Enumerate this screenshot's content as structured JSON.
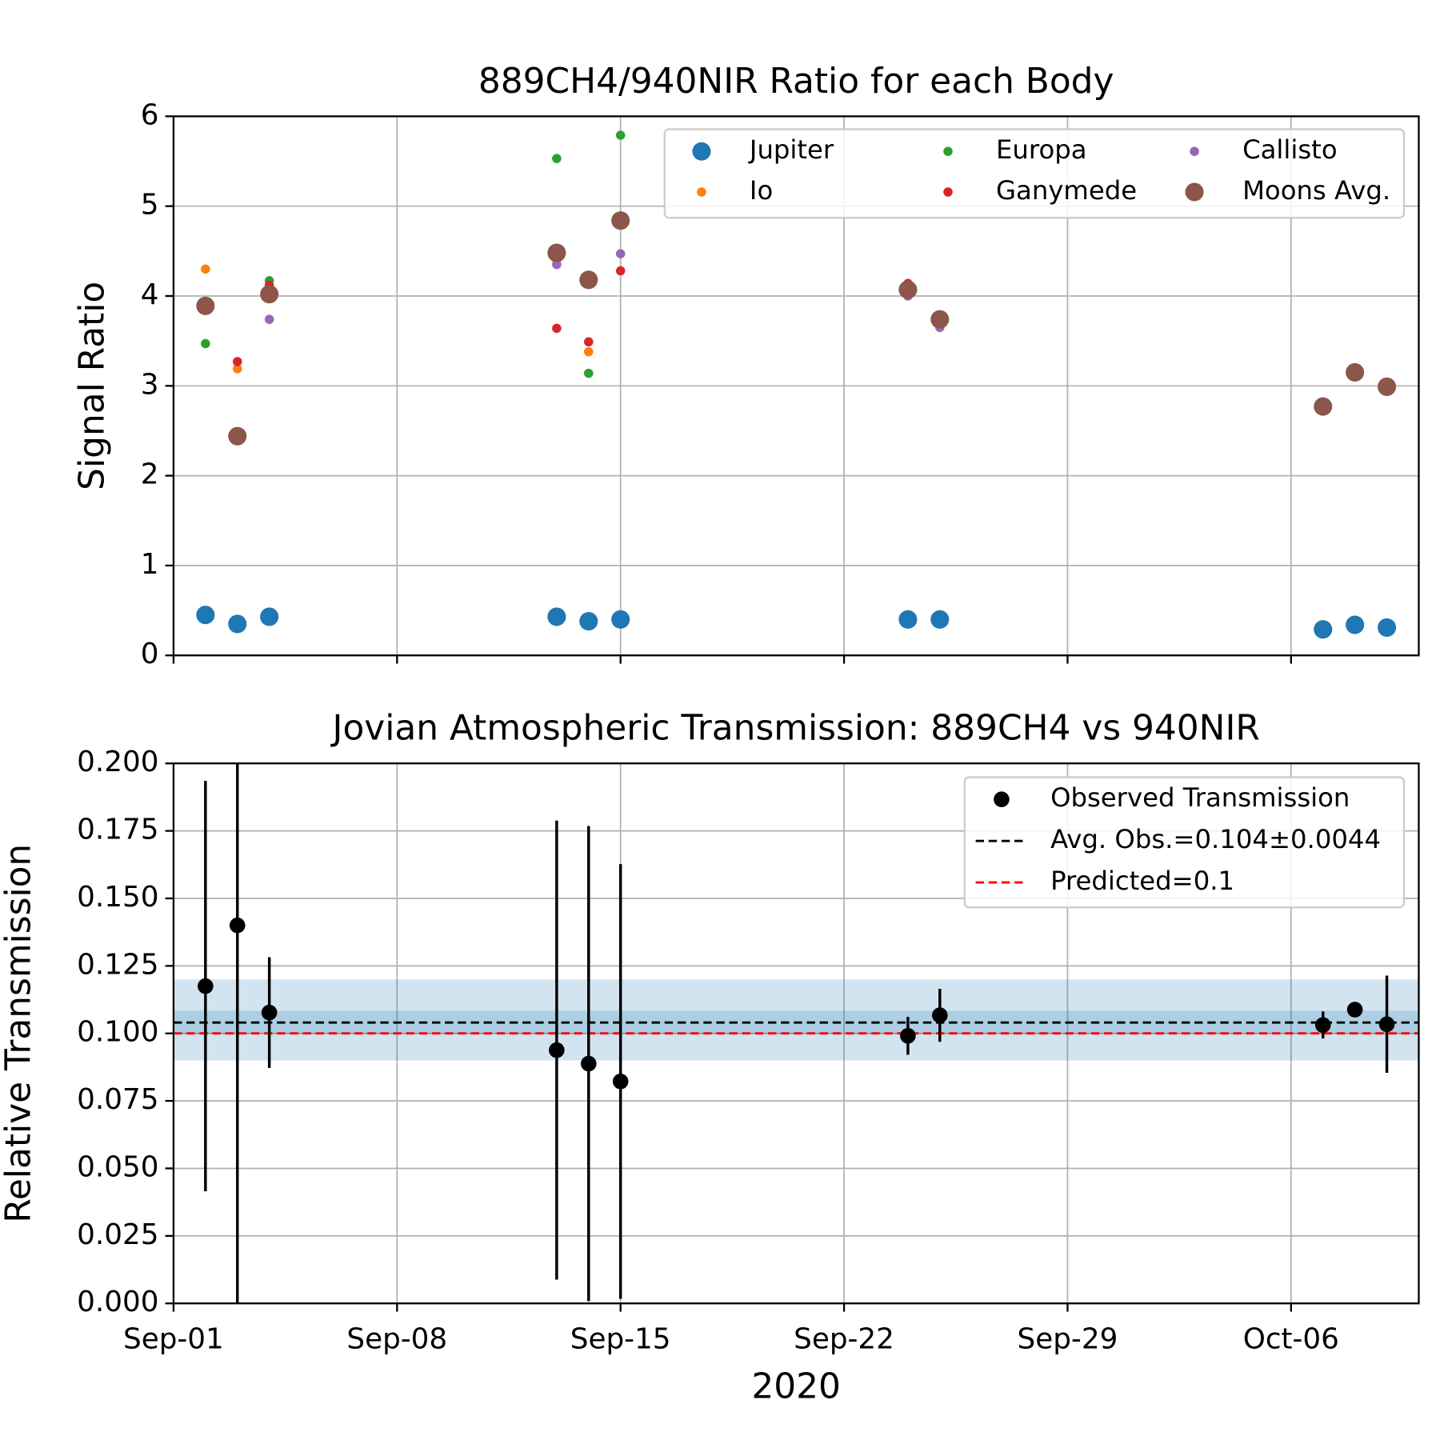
{
  "chart_data": [
    {
      "type": "scatter",
      "title": "889CH4/940NIR Ratio for each Body",
      "ylabel": "Signal Ratio",
      "x": [
        "2020-09-02",
        "2020-09-03",
        "2020-09-04",
        "2020-09-13",
        "2020-09-14",
        "2020-09-15",
        "2020-09-24",
        "2020-09-25",
        "2020-10-07",
        "2020-10-08",
        "2020-10-09"
      ],
      "series": [
        {
          "name": "Jupiter",
          "color": "#1f77b4",
          "marker_size": 10,
          "values": [
            0.45,
            0.35,
            0.43,
            0.43,
            0.38,
            0.4,
            0.4,
            0.4,
            0.29,
            0.34,
            0.31
          ]
        },
        {
          "name": "Io",
          "color": "#ff7f0e",
          "marker_size": 5,
          "values": [
            4.3,
            3.19,
            4.05,
            4.4,
            3.38,
            4.82,
            4.07,
            3.76,
            2.77,
            3.15,
            3.0
          ]
        },
        {
          "name": "Europa",
          "color": "#2ca02c",
          "marker_size": 5,
          "values": [
            3.47,
            null,
            4.17,
            5.53,
            3.14,
            5.79,
            4.07,
            3.79,
            2.77,
            3.15,
            2.94
          ]
        },
        {
          "name": "Ganymede",
          "color": "#d62728",
          "marker_size": 5,
          "values": [
            3.9,
            3.27,
            4.12,
            3.64,
            3.49,
            4.28,
            4.14,
            3.76,
            2.77,
            3.15,
            3.02
          ]
        },
        {
          "name": "Callisto",
          "color": "#9467bd",
          "marker_size": 5,
          "values": [
            3.89,
            null,
            3.74,
            4.35,
            null,
            4.47,
            4.0,
            3.65,
            2.77,
            3.15,
            3.0
          ]
        },
        {
          "name": "Moons Avg.",
          "color": "#8c564b",
          "marker_size": 10,
          "values": [
            3.89,
            2.44,
            4.02,
            4.48,
            4.18,
            4.84,
            4.07,
            3.74,
            2.77,
            3.15,
            2.99
          ]
        }
      ],
      "xlim": [
        "2020-09-01",
        "2020-10-10"
      ],
      "ylim": [
        0,
        6
      ],
      "yticks": [
        0,
        1,
        2,
        3,
        4,
        5,
        6
      ],
      "grid": true,
      "legend": "upper right"
    },
    {
      "type": "errorbar",
      "title": "Jovian Atmospheric Transmission: 889CH4 vs 940NIR",
      "ylabel": "Relative Transmission",
      "xlabel": "2020",
      "x": [
        "2020-09-02",
        "2020-09-03",
        "2020-09-04",
        "2020-09-13",
        "2020-09-14",
        "2020-09-15",
        "2020-09-24",
        "2020-09-25",
        "2020-10-07",
        "2020-10-08",
        "2020-10-09"
      ],
      "series": [
        {
          "name": "Observed Transmission",
          "color": "#000000",
          "values": [
            0.1175,
            0.14,
            0.1077,
            0.0938,
            0.0888,
            0.0822,
            0.0991,
            0.1067,
            0.1031,
            0.1088,
            0.1034
          ],
          "errors": [
            0.076,
            0.14,
            0.0205,
            0.085,
            0.088,
            0.0805,
            0.007,
            0.0098,
            0.005,
            0.002,
            0.018
          ]
        }
      ],
      "hlines": [
        {
          "name": "Avg. Obs.=0.104±0.0044",
          "value": 0.104,
          "color": "#000000"
        },
        {
          "name": "Predicted=0.1",
          "value": 0.1,
          "color": "#ff0000"
        }
      ],
      "bands": [
        {
          "from": 0.0996,
          "to": 0.1084,
          "color": "#1f77b4"
        },
        {
          "from": 0.09,
          "to": 0.12,
          "color": "#1f77b4"
        }
      ],
      "xlim": [
        "2020-09-01",
        "2020-10-10"
      ],
      "xticks": [
        {
          "value": "2020-09-01",
          "label": "Sep-01"
        },
        {
          "value": "2020-09-08",
          "label": "Sep-08"
        },
        {
          "value": "2020-09-15",
          "label": "Sep-15"
        },
        {
          "value": "2020-09-22",
          "label": "Sep-22"
        },
        {
          "value": "2020-09-29",
          "label": "Sep-29"
        },
        {
          "value": "2020-10-06",
          "label": "Oct-06"
        }
      ],
      "ylim": [
        0,
        0.2
      ],
      "yticks": [
        {
          "value": 0,
          "label": "0.000"
        },
        {
          "value": 0.025,
          "label": "0.025"
        },
        {
          "value": 0.05,
          "label": "0.050"
        },
        {
          "value": 0.075,
          "label": "0.075"
        },
        {
          "value": 0.1,
          "label": "0.100"
        },
        {
          "value": 0.125,
          "label": "0.125"
        },
        {
          "value": 0.15,
          "label": "0.150"
        },
        {
          "value": 0.175,
          "label": "0.175"
        },
        {
          "value": 0.2,
          "label": "0.200"
        }
      ],
      "grid": true,
      "legend": "upper right"
    }
  ]
}
